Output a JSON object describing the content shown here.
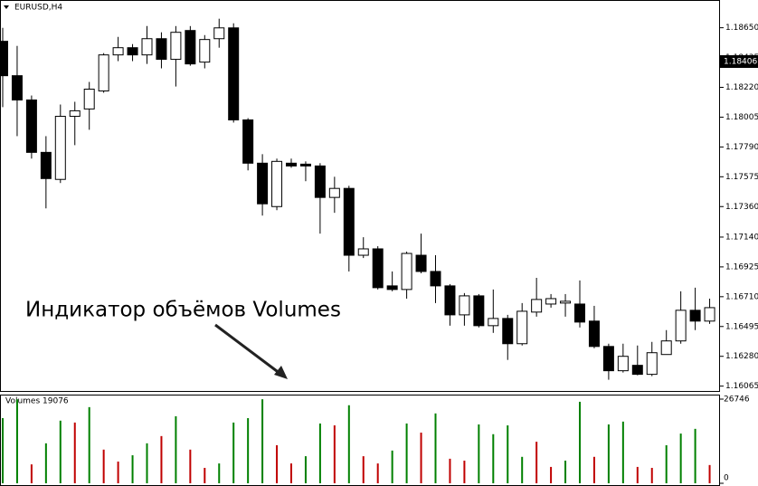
{
  "chart_data": [
    {
      "type": "candlestick",
      "title": "EURUSD,H4",
      "annotation": "Индикатор объёмов Volumes",
      "current_price": 1.18406,
      "bull_color": "#ffffff",
      "bear_color": "#000000",
      "open": [
        1.18552,
        1.18304,
        1.18129,
        1.17751,
        1.17556,
        1.18011,
        1.18064,
        1.18194,
        1.18454,
        1.18506,
        1.18454,
        1.18571,
        1.18422,
        1.1863,
        1.18402,
        1.18571,
        1.18649,
        1.17985,
        1.17673,
        1.1736,
        1.17673,
        1.17666,
        1.17653,
        1.17426,
        1.17491,
        1.17009,
        1.17055,
        1.16788,
        1.16762,
        1.17009,
        1.16892,
        1.16788,
        1.16579,
        1.16716,
        1.16501,
        1.16553,
        1.16371,
        1.16599,
        1.16657,
        1.16664,
        1.16657,
        1.16534,
        1.16351,
        1.16176,
        1.16215,
        1.1615,
        1.16293,
        1.16391,
        1.16612,
        1.16534
      ],
      "high": [
        1.18649,
        1.18519,
        1.18161,
        1.17868,
        1.18096,
        1.18116,
        1.18259,
        1.18467,
        1.18584,
        1.18532,
        1.18662,
        1.18617,
        1.18662,
        1.18662,
        1.18597,
        1.18715,
        1.18682,
        1.17998,
        1.17738,
        1.17706,
        1.17706,
        1.17686,
        1.17673,
        1.17575,
        1.1751,
        1.17139,
        1.17074,
        1.16892,
        1.17035,
        1.17165,
        1.17009,
        1.16801,
        1.16736,
        1.16729,
        1.16762,
        1.16579,
        1.16664,
        1.16846,
        1.16729,
        1.16729,
        1.16827,
        1.16644,
        1.16371,
        1.16371,
        1.16358,
        1.16384,
        1.16469,
        1.16749,
        1.16775,
        1.16696
      ],
      "low": [
        1.18077,
        1.17868,
        1.17706,
        1.17347,
        1.1753,
        1.17803,
        1.17914,
        1.18181,
        1.18409,
        1.18409,
        1.18389,
        1.18357,
        1.18226,
        1.18376,
        1.18357,
        1.18506,
        1.17966,
        1.17621,
        1.17295,
        1.17334,
        1.1764,
        1.17543,
        1.17165,
        1.17315,
        1.16892,
        1.16989,
        1.16762,
        1.16749,
        1.16696,
        1.16879,
        1.16664,
        1.16501,
        1.16501,
        1.16488,
        1.16449,
        1.16254,
        1.16358,
        1.16566,
        1.16631,
        1.16566,
        1.16488,
        1.16338,
        1.16111,
        1.16163,
        1.16143,
        1.16137,
        1.16293,
        1.16371,
        1.16469,
        1.16514
      ],
      "close": [
        1.18304,
        1.18129,
        1.17751,
        1.17562,
        1.18011,
        1.18051,
        1.18207,
        1.18454,
        1.18506,
        1.18454,
        1.18571,
        1.18422,
        1.18617,
        1.18389,
        1.18565,
        1.18649,
        1.17985,
        1.17673,
        1.1738,
        1.17686,
        1.17653,
        1.17653,
        1.17426,
        1.17491,
        1.17009,
        1.17055,
        1.16775,
        1.16762,
        1.17022,
        1.16892,
        1.16788,
        1.16579,
        1.16716,
        1.16501,
        1.16553,
        1.16371,
        1.16605,
        1.1669,
        1.16696,
        1.16677,
        1.16527,
        1.16351,
        1.16176,
        1.1628,
        1.1615,
        1.16306,
        1.16391,
        1.16612,
        1.16534,
        1.16631
      ],
      "ylim": [
        1.1603,
        1.1885
      ],
      "yticks": [
        {
          "value": 1.1865,
          "label": "1.18650"
        },
        1.18435,
        {
          "value": 1.1822,
          "label": "1.18220"
        },
        1.18005,
        {
          "value": 1.1779,
          "label": "1.17790"
        },
        1.17575,
        {
          "value": 1.1736,
          "label": "1.17360"
        },
        {
          "value": 1.1714,
          "label": "1.17140"
        },
        1.16925,
        {
          "value": 1.1671,
          "label": "1.16710"
        },
        1.16495,
        {
          "value": 1.1628,
          "label": "1.16280"
        },
        1.16065
      ]
    },
    {
      "type": "bar",
      "title": "Volumes 19076",
      "values": [
        20700,
        26700,
        6000,
        12700,
        19900,
        19300,
        24200,
        10700,
        6900,
        8900,
        12700,
        15000,
        21300,
        10700,
        4900,
        6300,
        19300,
        20700,
        26700,
        12100,
        6300,
        8600,
        19000,
        18400,
        24800,
        8600,
        6300,
        10400,
        19000,
        16100,
        22200,
        7800,
        7200,
        18700,
        15600,
        18400,
        8400,
        13200,
        5200,
        7200,
        25900,
        8400,
        18700,
        19600,
        5200,
        4900,
        12100,
        15800,
        17300,
        5800
      ],
      "colors": [
        "#008000",
        "#008000",
        "#c00000",
        "#008000",
        "#008000",
        "#c00000",
        "#008000",
        "#c00000",
        "#c00000",
        "#008000",
        "#008000",
        "#c00000",
        "#008000",
        "#c00000",
        "#c00000",
        "#008000",
        "#008000",
        "#008000",
        "#008000",
        "#c00000",
        "#c00000",
        "#008000",
        "#008000",
        "#c00000",
        "#008000",
        "#c00000",
        "#c00000",
        "#008000",
        "#008000",
        "#c00000",
        "#008000",
        "#c00000",
        "#c00000",
        "#008000",
        "#008000",
        "#008000",
        "#008000",
        "#c00000",
        "#c00000",
        "#008000",
        "#008000",
        "#c00000",
        "#008000",
        "#008000",
        "#c00000",
        "#c00000",
        "#008000",
        "#008000",
        "#008000",
        "#c00000"
      ],
      "ylim": [
        0,
        26746
      ],
      "yticks": [
        0,
        26746
      ]
    }
  ]
}
